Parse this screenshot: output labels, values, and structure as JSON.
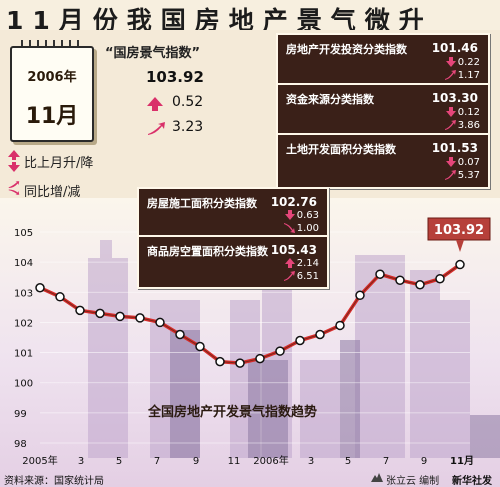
{
  "page_title": "11月份我国房地产景气微升",
  "calendar": {
    "year": "2006年",
    "month": "11月"
  },
  "main_index": {
    "label": "“国房景气指数”",
    "value": "103.92",
    "mom": "0.52",
    "yoy": "3.23"
  },
  "legend": {
    "mom_label": "比上月升/降",
    "yoy_label": "同比增/减"
  },
  "subindices": [
    {
      "name": "房地产开发投资分类指数",
      "value": "101.46",
      "mom": "0.22",
      "mom_dir": "down",
      "yoy": "1.17",
      "yoy_dir": "up"
    },
    {
      "name": "资金来源分类指数",
      "value": "103.30",
      "mom": "0.12",
      "mom_dir": "down",
      "yoy": "3.86",
      "yoy_dir": "up"
    },
    {
      "name": "土地开发面积分类指数",
      "value": "101.53",
      "mom": "0.07",
      "mom_dir": "down",
      "yoy": "5.37",
      "yoy_dir": "up"
    },
    {
      "name": "房屋施工面积分类指数",
      "value": "102.76",
      "mom": "0.63",
      "mom_dir": "down",
      "yoy": "1.00",
      "yoy_dir": "down"
    },
    {
      "name": "商品房空置面积分类指数",
      "value": "105.43",
      "mom": "2.14",
      "mom_dir": "up",
      "yoy": "6.51",
      "yoy_dir": "up"
    }
  ],
  "source": "资料来源：国家统计局",
  "author": "张立云 编制",
  "agency": "新华社发",
  "chart_data": {
    "type": "line",
    "title": "全国房地产开发景气指数趋势",
    "ylim": [
      98,
      105
    ],
    "yticks": [
      "105",
      "104",
      "103",
      "102",
      "101",
      "100",
      "99",
      "98"
    ],
    "x_labels": [
      "2005年",
      "3",
      "5",
      "7",
      "9",
      "11",
      "2006年",
      "3",
      "5",
      "7",
      "9",
      "11月"
    ],
    "values": [
      103.15,
      102.85,
      102.4,
      102.3,
      102.2,
      102.15,
      102.0,
      101.6,
      101.2,
      100.7,
      100.65,
      100.8,
      101.05,
      101.4,
      101.6,
      101.9,
      102.9,
      103.6,
      103.4,
      103.25,
      103.45,
      103.92
    ],
    "highlight_label": "103.92",
    "colors": {
      "line": "#d62b2b",
      "dot_fill": "#ffffff"
    }
  }
}
